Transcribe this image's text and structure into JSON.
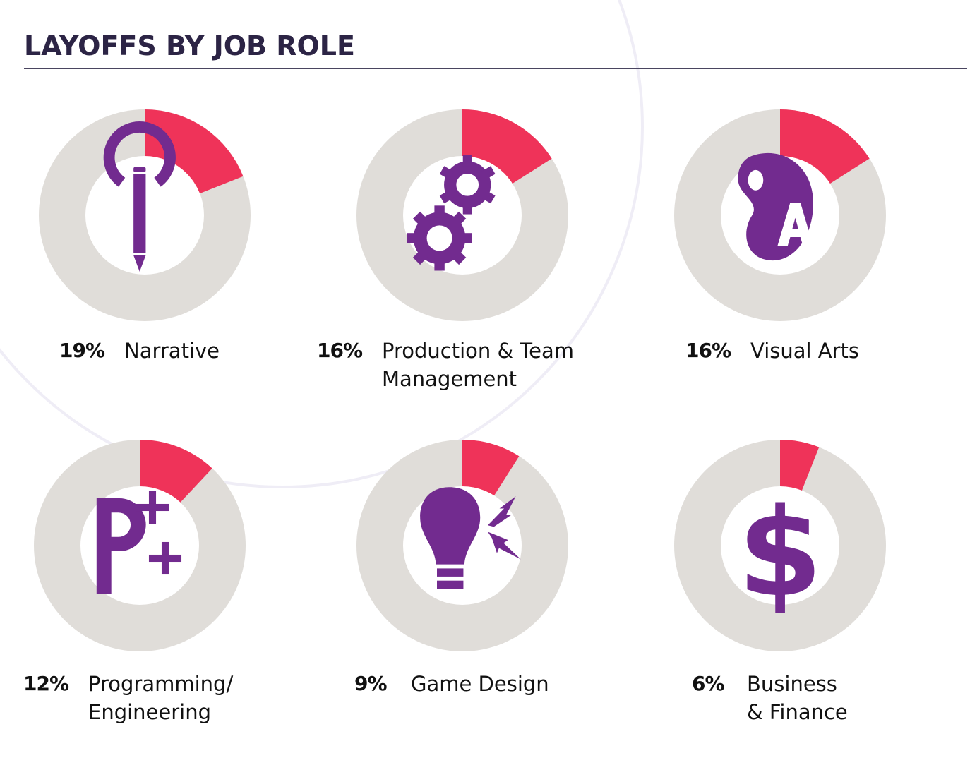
{
  "chart_data": {
    "type": "pie",
    "title": "LAYOFFS BY JOB ROLE",
    "colors": {
      "highlight": "#ef3359",
      "remainder": "#e0ddd9",
      "icon": "#722b8f",
      "title": "#2c2445"
    },
    "items": [
      {
        "label_lines": [
          "Narrative"
        ],
        "value": 19,
        "value_label": "19%",
        "icon": "pencil-icon"
      },
      {
        "label_lines": [
          "Production & Team",
          "Management"
        ],
        "value": 16,
        "value_label": "16%",
        "icon": "gears-icon"
      },
      {
        "label_lines": [
          "Visual Arts"
        ],
        "value": 16,
        "value_label": "16%",
        "icon": "palette-icon"
      },
      {
        "label_lines": [
          "Programming/",
          "Engineering"
        ],
        "value": 12,
        "value_label": "12%",
        "icon": "code-plus-icon"
      },
      {
        "label_lines": [
          "Game Design"
        ],
        "value": 9,
        "value_label": "9%",
        "icon": "lightbulb-icon"
      },
      {
        "label_lines": [
          "Business",
          "& Finance"
        ],
        "value": 6,
        "value_label": "6%",
        "icon": "dollar-icon"
      }
    ]
  }
}
